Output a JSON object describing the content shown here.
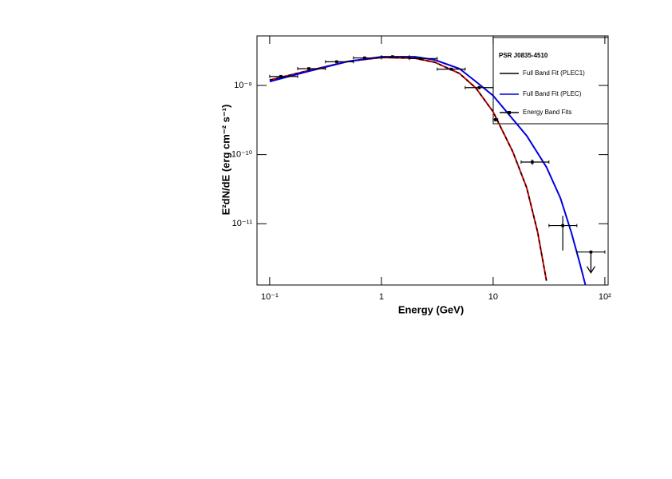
{
  "chart_data": {
    "type": "sed",
    "xlabel": "Energy (GeV)",
    "ylabel": "E²dN/dE (erg cm⁻² s⁻¹)",
    "xscale": "log",
    "yscale": "log",
    "xlim": [
      0.077,
      107
    ],
    "ylim": [
      1.3e-12,
      5.2e-09
    ],
    "xticks": [
      {
        "value": 0.1,
        "label": "10⁻¹"
      },
      1,
      10,
      {
        "value": 100,
        "label": "10²"
      }
    ],
    "yticks": [
      {
        "value": 1e-11,
        "label": "10⁻¹¹"
      },
      {
        "value": 1e-10,
        "label": "10⁻¹⁰"
      },
      {
        "value": 1e-09,
        "label": "10⁻⁹"
      }
    ],
    "legend_title": "PSR J0835-4510",
    "legend_position": "upper right",
    "series": [
      {
        "name": "Full Band Fit (PLEC1)",
        "type": "line",
        "color": "#dd0000",
        "dash_color": "#000000",
        "x": [
          0.1,
          0.2,
          0.5,
          1,
          2,
          3,
          5,
          7,
          10,
          15,
          20,
          25,
          30
        ],
        "values": [
          1.2e-09,
          1.57e-09,
          2.22e-09,
          2.54e-09,
          2.47e-09,
          2.16e-09,
          1.49e-09,
          9.2e-10,
          4.15e-10,
          1.1e-10,
          3.3e-11,
          7.6e-12,
          1.5e-12
        ]
      },
      {
        "name": "Full Band Fit (PLEC)",
        "type": "line",
        "color": "#0000dd",
        "x": [
          0.1,
          0.2,
          0.5,
          1,
          2,
          3,
          5,
          7,
          10,
          20,
          30,
          40,
          50,
          60,
          67
        ],
        "values": [
          1.14e-09,
          1.53e-09,
          2.22e-09,
          2.6e-09,
          2.6e-09,
          2.34e-09,
          1.75e-09,
          1.14e-09,
          7.1e-10,
          1.87e-10,
          6.6e-11,
          2.35e-11,
          7.6e-12,
          2.6e-12,
          1.3e-12
        ]
      },
      {
        "name": "Energy Band Fits",
        "type": "errorbar",
        "color": "#000000",
        "x": [
          0.126,
          0.224,
          0.398,
          0.708,
          1.26,
          2.24,
          4.22,
          7.5,
          10.5,
          22.4,
          42,
          75
        ],
        "x_low": [
          0.1,
          0.178,
          0.316,
          0.562,
          1.0,
          1.78,
          3.16,
          5.62,
          10,
          17.8,
          31.6,
          56.2
        ],
        "x_high": [
          0.178,
          0.316,
          0.562,
          1.0,
          1.78,
          3.16,
          5.62,
          10,
          11,
          31.6,
          56.2,
          100
        ],
        "values": [
          1.35e-09,
          1.75e-09,
          2.2e-09,
          2.5e-09,
          2.6e-09,
          2.45e-09,
          1.72e-09,
          9.3e-10,
          3.2e-10,
          7.8e-11,
          9.4e-12,
          3.9e-12
        ],
        "y_low": [
          1.3e-09,
          1.7e-09,
          2.14e-09,
          2.44e-09,
          2.54e-09,
          2.38e-09,
          1.65e-09,
          8.8e-10,
          3e-10,
          7.1e-11,
          4.1e-12,
          null
        ],
        "y_high": [
          1.4e-09,
          1.8e-09,
          2.26e-09,
          2.56e-09,
          2.66e-09,
          2.52e-09,
          1.79e-09,
          9.8e-10,
          3.4e-10,
          8.5e-11,
          1.3e-11,
          null
        ],
        "upper_limit": [
          false,
          false,
          false,
          false,
          false,
          false,
          false,
          false,
          false,
          false,
          false,
          true
        ]
      }
    ]
  }
}
